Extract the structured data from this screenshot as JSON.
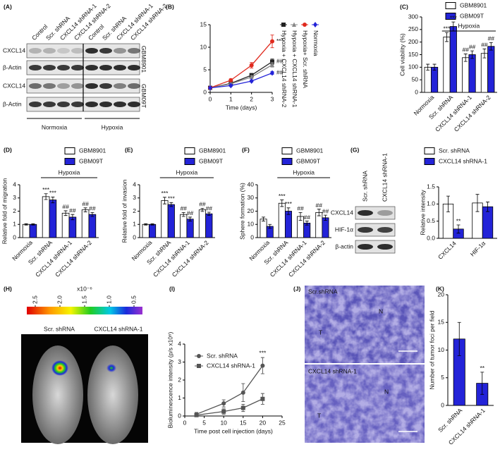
{
  "chart_data": [
    {
      "type": "line",
      "panel_label": "(B)",
      "xlabel": "Time (days)",
      "x": [
        0,
        1,
        2,
        3
      ],
      "xlim": [
        0,
        3
      ],
      "xticks": [
        0,
        1,
        2,
        3
      ],
      "ylim": [
        0,
        15
      ],
      "yticks": [
        0,
        5,
        10,
        15
      ],
      "series": [
        {
          "name": "Hypoxia + CXCL14 shRNA-2",
          "color": "#222222",
          "marker": "square",
          "values": [
            1,
            2,
            3.8,
            6.8
          ],
          "errors": [
            0.1,
            0.2,
            0.4,
            0.6
          ],
          "significance": [
            null,
            null,
            null,
            "##"
          ]
        },
        {
          "name": "Hypoxia + CXCL14 shRNA-1",
          "color": "#888888",
          "marker": "triangle",
          "values": [
            1,
            1.9,
            3.4,
            6.1
          ],
          "errors": [
            0.1,
            0.2,
            0.3,
            0.5
          ]
        },
        {
          "name": "Hypoxia+ Scr. shRNA",
          "color": "#e02a1e",
          "marker": "circle",
          "values": [
            1,
            2.7,
            6,
            11.3
          ],
          "errors": [
            0.1,
            0.3,
            0.6,
            1.4
          ],
          "significance": [
            null,
            null,
            null,
            "***"
          ]
        },
        {
          "name": "Normoxia",
          "color": "#2323d8",
          "marker": "diamond",
          "values": [
            1,
            1.5,
            2.5,
            4.3
          ],
          "errors": [
            0.1,
            0.2,
            0.2,
            0.3
          ],
          "significance": [
            null,
            null,
            null,
            "##"
          ]
        }
      ]
    },
    {
      "type": "bar",
      "panel_label": "(C)",
      "ylabel": "Cell viability (%)",
      "group_label": "Hypoxia",
      "categories": [
        "Normoxia",
        "Scr. shRNA",
        "CXCL14 shRNA-1",
        "CXCL14 shRNA-2"
      ],
      "ylim": [
        0,
        300
      ],
      "yticks": [
        0,
        50,
        100,
        150,
        200,
        250,
        300
      ],
      "series": [
        {
          "name": "GBM8901",
          "color": "#ffffff",
          "values": [
            100,
            220,
            138,
            155
          ],
          "errors": [
            12,
            18,
            15,
            18
          ],
          "significance": [
            null,
            "***",
            "##",
            "##"
          ]
        },
        {
          "name": "GBM09T",
          "color": "#2323d8",
          "values": [
            100,
            262,
            150,
            183
          ],
          "errors": [
            12,
            18,
            15,
            15
          ],
          "significance": [
            null,
            "***",
            "##",
            "##"
          ]
        }
      ]
    },
    {
      "type": "bar",
      "panel_label": "(D)",
      "ylabel": "Relative fold of migration",
      "group_label": "Hypoxia",
      "categories": [
        "Normoxia",
        "Scr. shRNA",
        "CXCL14 shRNA-1",
        "CXCL14 shRNA-2"
      ],
      "ylim": [
        0,
        4
      ],
      "yticks": [
        0,
        1,
        2,
        3,
        4
      ],
      "series": [
        {
          "name": "GBM8901",
          "color": "#ffffff",
          "values": [
            1,
            3.1,
            1.85,
            2.1
          ],
          "errors": [
            0.05,
            0.22,
            0.18,
            0.15
          ],
          "significance": [
            null,
            "***",
            "##",
            "##"
          ]
        },
        {
          "name": "GBM09T",
          "color": "#2323d8",
          "values": [
            1,
            2.85,
            1.55,
            1.75
          ],
          "errors": [
            0.05,
            0.22,
            0.2,
            0.15
          ],
          "significance": [
            null,
            "***",
            "##",
            "##"
          ]
        }
      ]
    },
    {
      "type": "bar",
      "panel_label": "(E)",
      "ylabel": "Relative fold of invasion",
      "group_label": "Hypoxia",
      "categories": [
        "Normoxia",
        "Scr. shRNA",
        "CXCL14 shRNA-1",
        "CXCL14 shRNA-2"
      ],
      "ylim": [
        0,
        4
      ],
      "yticks": [
        0,
        1,
        2,
        3,
        4
      ],
      "series": [
        {
          "name": "GBM8901",
          "color": "#ffffff",
          "values": [
            1,
            2.8,
            1.75,
            2.1
          ],
          "errors": [
            0.05,
            0.25,
            0.15,
            0.12
          ],
          "significance": [
            null,
            "***",
            "##",
            "##"
          ]
        },
        {
          "name": "GBM09T",
          "color": "#2323d8",
          "values": [
            1,
            2.5,
            1.4,
            1.8
          ],
          "errors": [
            0.05,
            0.15,
            0.15,
            0.12
          ],
          "significance": [
            null,
            "***",
            "##",
            "##"
          ]
        }
      ]
    },
    {
      "type": "bar",
      "panel_label": "(F)",
      "ylabel": "Sphere formation (%)",
      "group_label": "Hypoxia",
      "categories": [
        "Normoxia",
        "Scr. shRNA",
        "CXCL14 shRNA-1",
        "CXCL14 shRNA-2"
      ],
      "ylim": [
        0,
        40
      ],
      "yticks": [
        0,
        10,
        20,
        30,
        40
      ],
      "series": [
        {
          "name": "GBM8901",
          "color": "#ffffff",
          "values": [
            14,
            26,
            16,
            19
          ],
          "errors": [
            1.5,
            2.5,
            3,
            2.5
          ],
          "significance": [
            null,
            "***",
            "##",
            "##"
          ]
        },
        {
          "name": "GBM09T",
          "color": "#2323d8",
          "values": [
            8.5,
            20,
            11,
            15
          ],
          "errors": [
            1.5,
            2.5,
            1.5,
            2
          ],
          "significance": [
            null,
            "***",
            "##",
            "##"
          ]
        }
      ]
    },
    {
      "type": "bar",
      "ylabel": "Relative intensity",
      "categories": [
        "CXCL14",
        "HIF-1α"
      ],
      "ylim": [
        0,
        1.5
      ],
      "yticks": [
        {
          "value": 0,
          "label": "0.0"
        },
        0.5,
        {
          "value": 1,
          "label": "1.0"
        },
        1.5
      ],
      "series": [
        {
          "name": "Scr. shRNA",
          "color": "#ffffff",
          "values": [
            1.0,
            1.03
          ],
          "errors": [
            0.23,
            0.25
          ]
        },
        {
          "name": "CXCL14 shRNA-1",
          "color": "#2323d8",
          "values": [
            0.27,
            0.92
          ],
          "errors": [
            0.12,
            0.14
          ],
          "significance": [
            "**",
            null
          ]
        }
      ]
    },
    {
      "type": "line",
      "panel_label": "(I)",
      "ylabel": "Bioluminescence intensity (p/s x10⁶)",
      "xlabel": "Time post cell injection (days)",
      "x": [
        3,
        10,
        15,
        20
      ],
      "xlim": [
        0,
        25
      ],
      "xticks": [
        0,
        5,
        10,
        15,
        20,
        25
      ],
      "ylim": [
        0,
        4
      ],
      "yticks": [
        0,
        1,
        2,
        3,
        4
      ],
      "series": [
        {
          "name": "Scr. shRNA",
          "color": "#555555",
          "marker": "circle",
          "values": [
            0.1,
            0.7,
            1.3,
            2.8
          ],
          "errors": [
            0.1,
            0.2,
            0.5,
            0.45
          ],
          "significance": [
            null,
            null,
            null,
            "***"
          ]
        },
        {
          "name": "CXCL14 shRNA-1",
          "color": "#555555",
          "marker": "square",
          "values": [
            0.05,
            0.25,
            0.45,
            0.95
          ],
          "errors": [
            0.05,
            0.15,
            0.2,
            0.3
          ]
        }
      ]
    },
    {
      "type": "bar",
      "panel_label": "(K)",
      "ylabel": "Number of tumor foci per field",
      "categories": [
        "Scr. shRNA",
        "CXCL14 shRNA-1"
      ],
      "ylim": [
        0,
        20
      ],
      "yticks": [
        0,
        5,
        10,
        15,
        20
      ],
      "series": [
        {
          "color": "#2323d8",
          "values": [
            12,
            4
          ],
          "errors": [
            3,
            2
          ],
          "significance": [
            null,
            "**"
          ]
        }
      ]
    }
  ],
  "blot_A": {
    "panel_label": "(A)",
    "lanes": [
      "Control",
      "Scr. shRNA",
      "CXCL14 shRNA-1",
      "CXCL14 shRNA-2",
      "Control",
      "Scr. shRNA",
      "CXCL14 shRNA-1",
      "CXCL14 shRNA-2"
    ],
    "rows": [
      "CXCL14",
      "β-Actin",
      "CXCL14",
      "β-Actin"
    ],
    "cell_lines": [
      "GBM8901",
      "GBM09T"
    ],
    "conditions": [
      "Normoxia",
      "Hypoxia"
    ]
  },
  "blot_G": {
    "panel_label": "(G)",
    "lanes": [
      "Scr. shRNA",
      "CXCL14 shRNA-1"
    ],
    "rows": [
      "CXCL14",
      "HIF-1α",
      "β-actin"
    ]
  },
  "image_H": {
    "panel_label": "(H)",
    "colorbar_unit": "x10⁻⁶",
    "colorbar_ticks": [
      2.5,
      {
        "value": 2,
        "label": "2.0"
      },
      1.5,
      {
        "value": 1,
        "label": "1.0"
      },
      0.5
    ],
    "groups": [
      "Scr. shRNA",
      "CXCL14 shRNA-1"
    ]
  },
  "image_J": {
    "panel_label": "(J)",
    "sections": [
      "Scr.shRNA",
      "CXCL14 shRNA-1"
    ],
    "regions": [
      "N",
      "T",
      "N",
      "T"
    ]
  }
}
